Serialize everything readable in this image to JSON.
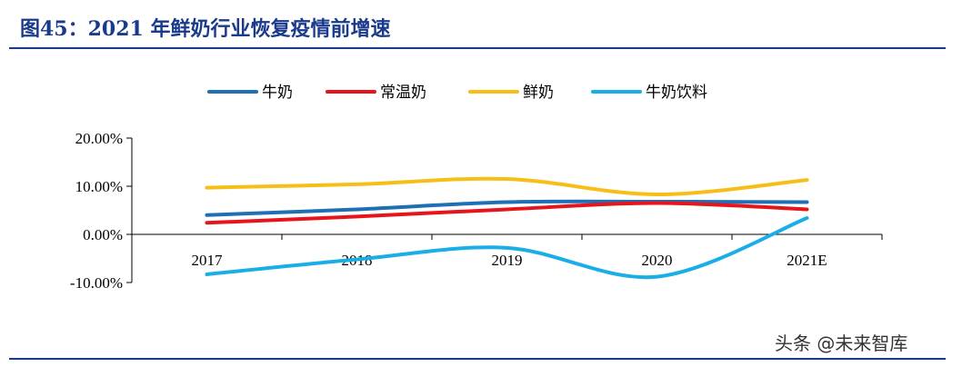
{
  "figure": {
    "title": "图45：2021 年鲜奶行业恢复疫情前增速",
    "watermark": "头条 @未来智库"
  },
  "chart_data": {
    "type": "line",
    "title": "",
    "xlabel": "",
    "ylabel": "",
    "categories": [
      "2017",
      "2018",
      "2019",
      "2020",
      "2021E"
    ],
    "ylim": [
      -0.1,
      0.2
    ],
    "yticks": [
      -0.1,
      0.0,
      0.1,
      0.2
    ],
    "ytick_labels": [
      "-10.00%",
      "0.00%",
      "10.00%",
      "20.00%"
    ],
    "grid": false,
    "legend_position": "top",
    "smooth": true,
    "series": [
      {
        "name": "牛奶",
        "color": "#1f6fb5",
        "values": [
          0.04,
          0.052,
          0.067,
          0.068,
          0.067
        ]
      },
      {
        "name": "常温奶",
        "color": "#e8141b",
        "values": [
          0.024,
          0.037,
          0.052,
          0.065,
          0.052
        ]
      },
      {
        "name": "鲜奶",
        "color": "#f6be16",
        "values": [
          0.097,
          0.104,
          0.115,
          0.083,
          0.113
        ]
      },
      {
        "name": "牛奶饮料",
        "color": "#19aee6",
        "values": [
          -0.083,
          -0.052,
          -0.028,
          -0.088,
          0.034
        ]
      }
    ]
  }
}
